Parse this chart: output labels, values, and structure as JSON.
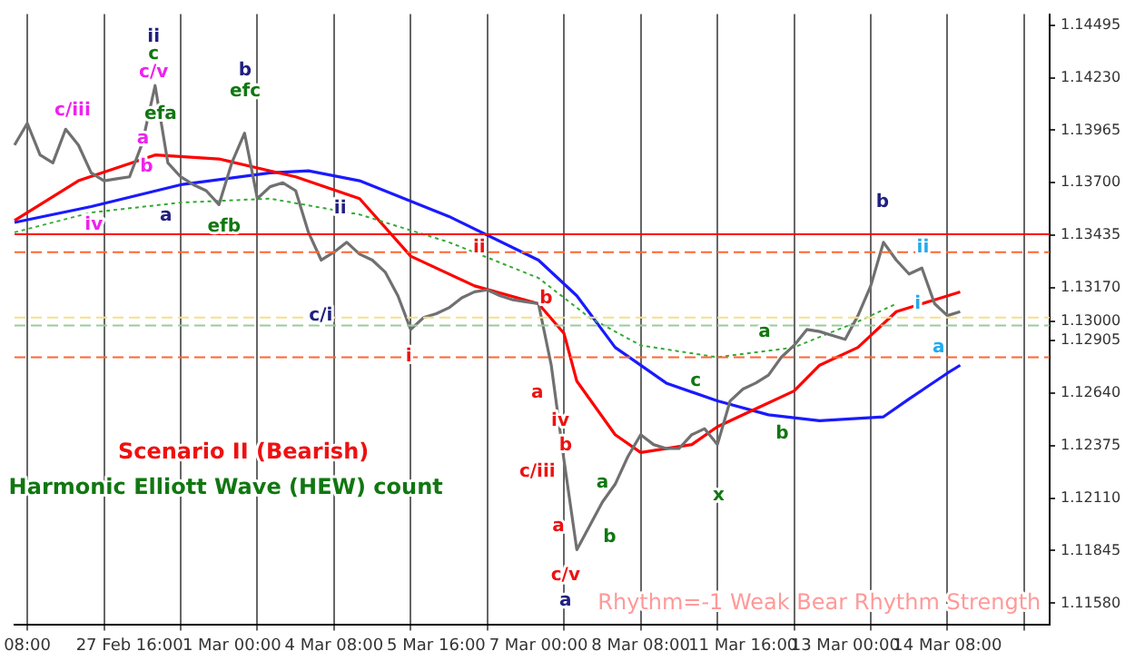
{
  "chart_data": {
    "type": "line",
    "legend": false,
    "grid": "x",
    "marker": "none",
    "categories": [
      null,
      "08:00",
      null,
      null,
      null,
      null,
      null,
      null,
      null,
      "27 Feb 16:00",
      null,
      null,
      null,
      null,
      null,
      null,
      null,
      "1 Mar 00:00",
      null,
      null,
      null,
      null,
      null,
      null,
      null,
      "4 Mar 08:00",
      null,
      null,
      null,
      null,
      null,
      null,
      null,
      "5 Mar 16:00",
      null,
      null,
      null,
      null,
      null,
      null,
      null,
      "7 Mar 00:00",
      null,
      null,
      null,
      null,
      null,
      null,
      null,
      "8 Mar 08:00",
      null,
      null,
      null,
      null,
      null,
      null,
      null,
      "11 Mar 16:00",
      null,
      null,
      null,
      null,
      null,
      null,
      null,
      "13 Mar 00:00",
      null,
      null,
      null,
      null,
      null,
      null,
      null,
      "14 Mar 08:00",
      null,
      null,
      null,
      null,
      null,
      null,
      null,
      null
    ],
    "ylim": [
      1.1147,
      1.1455
    ],
    "yticks": [
      {
        "value": 1.1158,
        "label": "1.11580"
      },
      {
        "value": 1.11845,
        "label": "1.11845"
      },
      {
        "value": 1.1211,
        "label": "1.12110"
      },
      {
        "value": 1.12375,
        "label": "1.12375"
      },
      {
        "value": 1.1264,
        "label": "1.12640"
      },
      {
        "value": 1.12905,
        "label": "1.12905"
      },
      {
        "value": 1.1317,
        "label": "1.13170"
      },
      {
        "value": 1.13435,
        "label": "1.13435"
      },
      {
        "value": 1.137,
        "label": "1.13700"
      },
      {
        "value": 1.13965,
        "label": "1.13965"
      },
      {
        "value": 1.1423,
        "label": "1.14230"
      },
      {
        "value": 1.14495,
        "label": "1.14495"
      },
      {
        "value": 1.13,
        "label": "1.13000"
      }
    ],
    "series": [
      {
        "color": "#707070",
        "values": [
          1.1389,
          1.14,
          1.1384,
          1.138,
          1.1397,
          1.1389,
          1.1375,
          1.1371,
          1.1372,
          1.1373,
          1.139,
          1.1419,
          1.138,
          1.1373,
          1.1369,
          1.1366,
          1.1359,
          1.138,
          1.1395,
          1.1362,
          1.1368,
          1.137,
          1.1366,
          1.1345,
          1.1331,
          1.1335,
          1.134,
          1.1334,
          1.1331,
          1.1325,
          1.1313,
          1.1296,
          1.1302,
          1.1304,
          1.1307,
          1.1312,
          1.1315,
          1.1316,
          1.1313,
          1.1311,
          1.131,
          1.1309,
          1.1278,
          1.123,
          1.1185,
          1.1197,
          1.1209,
          1.1218,
          1.1232,
          1.1243,
          1.1238,
          1.1236,
          1.1236,
          1.1243,
          1.1246,
          1.1238,
          1.126,
          1.1266,
          1.1269,
          1.1273,
          1.1282,
          1.1288,
          1.1296,
          1.1295,
          1.1293,
          1.1291,
          1.1303,
          1.1318,
          1.134,
          1.1331,
          1.1324,
          1.1327,
          1.1309,
          1.1303,
          1.1305,
          null,
          null,
          null,
          null,
          null,
          null,
          null
        ]
      },
      {
        "color": "#33aa33",
        "line_style": "dotted",
        "values": [
          1.1345,
          null,
          null,
          null,
          null,
          null,
          1.1355,
          null,
          null,
          null,
          null,
          null,
          null,
          1.136,
          null,
          null,
          null,
          null,
          null,
          null,
          1.1362,
          null,
          null,
          null,
          null,
          null,
          null,
          1.1354,
          null,
          null,
          null,
          null,
          null,
          null,
          1.134,
          null,
          null,
          null,
          null,
          null,
          null,
          1.1322,
          null,
          null,
          null,
          1.1302,
          null,
          null,
          null,
          1.1288,
          null,
          null,
          null,
          null,
          null,
          1.1282,
          null,
          null,
          null,
          null,
          null,
          1.1287,
          null,
          null,
          null,
          null,
          1.13,
          null,
          null,
          1.1309,
          null,
          null,
          null,
          null,
          null,
          null,
          null,
          null,
          null,
          null,
          null,
          null
        ]
      },
      {
        "color": "#ff0000",
        "values": [
          1.1351,
          null,
          null,
          null,
          null,
          1.1371,
          null,
          null,
          null,
          null,
          null,
          1.1384,
          null,
          null,
          null,
          null,
          1.1382,
          null,
          null,
          null,
          null,
          null,
          1.1373,
          null,
          null,
          null,
          null,
          1.1362,
          null,
          null,
          null,
          1.1333,
          null,
          null,
          null,
          null,
          1.1318,
          null,
          null,
          null,
          null,
          1.1309,
          null,
          1.1294,
          1.127,
          null,
          null,
          1.1243,
          null,
          1.1234,
          null,
          null,
          null,
          1.1238,
          null,
          1.1247,
          null,
          null,
          1.1256,
          null,
          null,
          1.1265,
          null,
          1.1278,
          null,
          null,
          1.1287,
          null,
          null,
          1.1305,
          null,
          null,
          1.1311,
          null,
          1.1315,
          null,
          null,
          null,
          null,
          null,
          null,
          null
        ]
      },
      {
        "color": "#1a1aff",
        "values": [
          1.135,
          null,
          null,
          null,
          null,
          null,
          1.1358,
          null,
          null,
          null,
          null,
          null,
          null,
          1.1369,
          null,
          null,
          null,
          null,
          null,
          null,
          1.1375,
          null,
          null,
          1.1376,
          null,
          null,
          null,
          1.1371,
          null,
          null,
          null,
          null,
          null,
          null,
          1.1353,
          null,
          null,
          null,
          null,
          null,
          null,
          1.1331,
          null,
          null,
          1.1313,
          null,
          null,
          1.1287,
          null,
          null,
          null,
          1.1269,
          null,
          null,
          null,
          1.126,
          null,
          null,
          null,
          1.1253,
          null,
          null,
          null,
          1.125,
          null,
          null,
          null,
          null,
          1.1252,
          null,
          1.1261,
          null,
          null,
          1.1274,
          1.1278,
          null,
          null,
          null,
          null,
          null,
          null,
          null
        ]
      }
    ],
    "ref_lines": [
      {
        "axis": "y",
        "value": 1.1344,
        "color": "#ff0000",
        "line_style": "solid"
      },
      {
        "axis": "y",
        "value": 1.1335,
        "color": "#ff6633",
        "line_style": "dashed"
      },
      {
        "axis": "y",
        "value": 1.1282,
        "color": "#ff6633",
        "line_style": "dashed"
      },
      {
        "axis": "y",
        "value": 1.1302,
        "color": "#f5e08a",
        "line_style": "dashed"
      },
      {
        "axis": "y",
        "value": 1.1298,
        "color": "#99cc99",
        "line_style": "dashed"
      }
    ],
    "annotations": [
      "Scenario II (Bearish)",
      "Harmonic Elliott Wave (HEW) count",
      "Rhythm=-1 Weak Bear Rhythm Strength",
      "ii",
      "c",
      "c/v",
      "c/iii",
      "efa",
      "a",
      "b",
      "iv",
      "a",
      "b",
      "efc",
      "efb",
      "ii",
      "c/i",
      "i",
      "ii",
      "b",
      "a",
      "iv",
      "b",
      "c/iii",
      "a",
      "c/v",
      "a",
      "a",
      "b",
      "x",
      "c",
      "b",
      "a",
      "b",
      "ii",
      "i",
      "a"
    ]
  }
}
